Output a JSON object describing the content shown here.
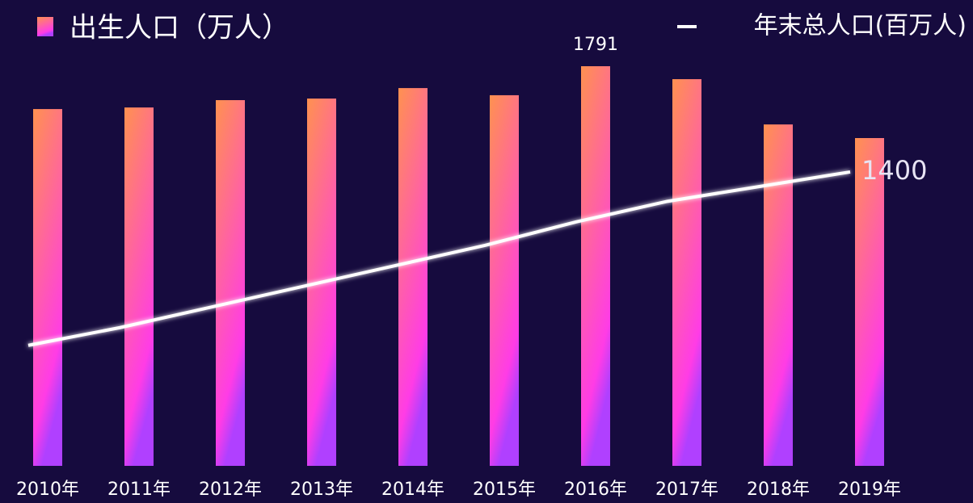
{
  "chart_data": {
    "type": "bar",
    "categories": [
      "2010年",
      "2011年",
      "2012年",
      "2013年",
      "2014年",
      "2015年",
      "2016年",
      "2017年",
      "2018年",
      "2019年"
    ],
    "ylim": [
      0,
      1943
    ],
    "y2lim": [
      1300,
      1447.5
    ],
    "legend": "top",
    "series": [
      {
        "name": "出生人口（万人）",
        "type": "bar",
        "colors": [
          "#ff9150",
          "#ff3ce6"
        ],
        "values": [
          1599,
          1606,
          1639,
          1646,
          1693,
          1661,
          1791,
          1733,
          1530,
          1469
        ],
        "value_labels": [
          null,
          null,
          null,
          null,
          null,
          null,
          "1791",
          null,
          null,
          null
        ]
      },
      {
        "name": "年末总人口(百万人)",
        "type": "line",
        "axis": "y2",
        "color": "#ffffff",
        "values": [
          1341,
          1347,
          1354,
          1361,
          1368,
          1375,
          1383,
          1390,
          1395,
          1400
        ],
        "value_labels": [
          null,
          null,
          null,
          null,
          null,
          null,
          null,
          null,
          null,
          "1400"
        ]
      }
    ]
  }
}
